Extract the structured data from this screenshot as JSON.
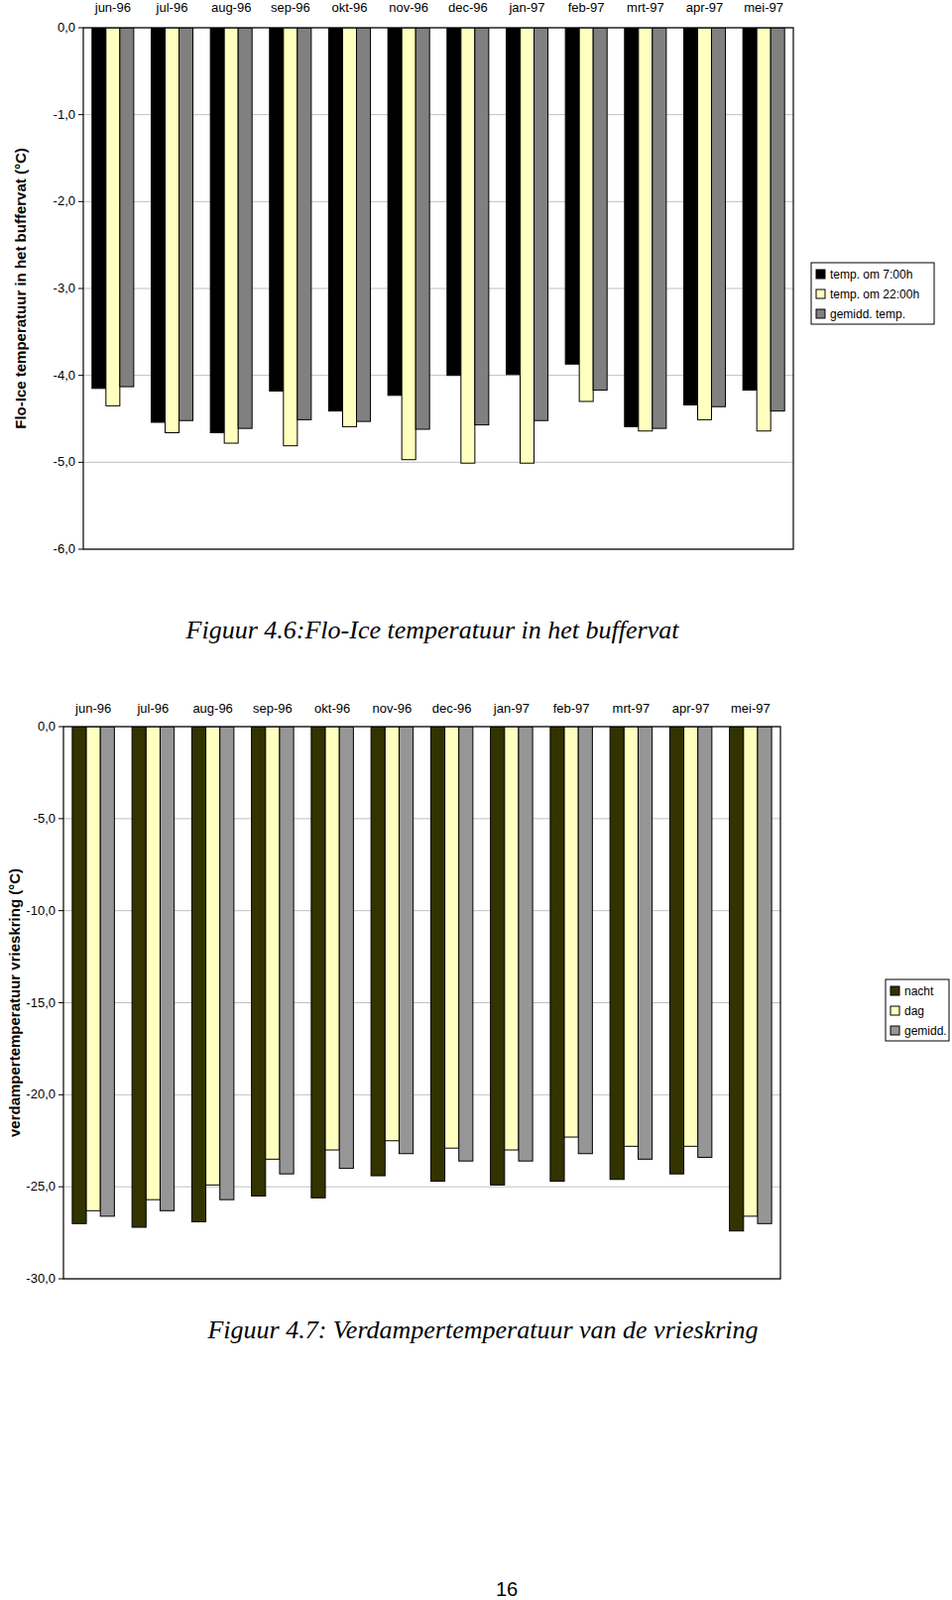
{
  "chart_data": [
    {
      "type": "bar",
      "title": "Figuur 4.6:Flo-Ice temperatuur in het buffervat",
      "y_label": "Flo-Ice temperatuur in het buffervat (°C)",
      "categories": [
        "jun-96",
        "jul-96",
        "aug-96",
        "sep-96",
        "okt-96",
        "nov-96",
        "dec-96",
        "jan-97",
        "feb-97",
        "mrt-97",
        "apr-97",
        "mei-97"
      ],
      "series": [
        {
          "name": "temp. om 7:00h",
          "color": "#000000",
          "values": [
            -4.15,
            -4.54,
            -4.66,
            -4.18,
            -4.41,
            -4.23,
            -4.0,
            -3.99,
            -3.87,
            -4.59,
            -4.34,
            -4.17
          ]
        },
        {
          "name": "temp. om 22:00h",
          "color": "#ffffc0",
          "values": [
            -4.35,
            -4.66,
            -4.78,
            -4.81,
            -4.59,
            -4.97,
            -5.01,
            -5.01,
            -4.3,
            -4.64,
            -4.51,
            -4.64
          ]
        },
        {
          "name": "gemidd. temp.",
          "color": "#808080",
          "values": [
            -4.13,
            -4.52,
            -4.61,
            -4.51,
            -4.53,
            -4.62,
            -4.57,
            -4.52,
            -4.17,
            -4.61,
            -4.36,
            -4.41
          ]
        }
      ],
      "ylim": [
        -6,
        0
      ],
      "yticks": [
        {
          "value": 0,
          "label": "0,0"
        },
        {
          "value": -1,
          "label": "-1,0"
        },
        {
          "value": -2,
          "label": "-2,0"
        },
        {
          "value": -3,
          "label": "-3,0"
        },
        {
          "value": -4,
          "label": "-4,0"
        },
        {
          "value": -5,
          "label": "-5,0"
        },
        {
          "value": -6,
          "label": "-6,0"
        }
      ],
      "grid": true,
      "legend": "right"
    },
    {
      "type": "bar",
      "title": "Figuur 4.7: Verdampertemperatuur van de vrieskring",
      "y_label": "verdampertemperatuur vrieskring (°C)",
      "categories": [
        "jun-96",
        "jul-96",
        "aug-96",
        "sep-96",
        "okt-96",
        "nov-96",
        "dec-96",
        "jan-97",
        "feb-97",
        "mrt-97",
        "apr-97",
        "mei-97"
      ],
      "series": [
        {
          "name": "nacht",
          "color": "#333300",
          "values": [
            -27.0,
            -27.2,
            -26.9,
            -25.5,
            -25.6,
            -24.4,
            -24.7,
            -24.9,
            -24.7,
            -24.6,
            -24.3,
            -27.4
          ]
        },
        {
          "name": "dag",
          "color": "#ffffc0",
          "values": [
            -26.3,
            -25.7,
            -24.9,
            -23.5,
            -23.0,
            -22.5,
            -22.9,
            -23.0,
            -22.3,
            -22.8,
            -22.8,
            -26.6
          ]
        },
        {
          "name": "gemidd.",
          "color": "#969696",
          "values": [
            -26.6,
            -26.3,
            -25.7,
            -24.3,
            -24.0,
            -23.2,
            -23.6,
            -23.6,
            -23.2,
            -23.5,
            -23.4,
            -27.0
          ]
        }
      ],
      "ylim": [
        -30,
        0
      ],
      "yticks": [
        {
          "value": 0,
          "label": "0,0"
        },
        {
          "value": -5,
          "label": "-5,0"
        },
        {
          "value": -10,
          "label": "-10,0"
        },
        {
          "value": -15,
          "label": "-15,0"
        },
        {
          "value": -20,
          "label": "-20,0"
        },
        {
          "value": -25,
          "label": "-25,0"
        },
        {
          "value": -30,
          "label": "-30,0"
        }
      ],
      "grid": true,
      "legend": "right"
    }
  ],
  "page_number": "16"
}
